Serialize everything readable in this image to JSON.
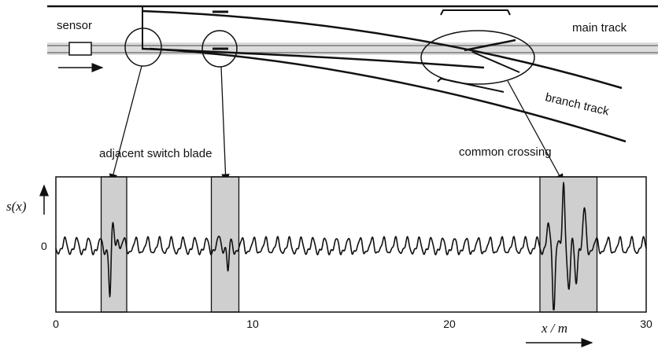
{
  "labels": {
    "sensor": "sensor",
    "main_track": "main track",
    "branch_track": "branch track",
    "adjacent_switch_blade": "adjacent switch blade",
    "common_crossing": "common crossing"
  },
  "chart_data": {
    "type": "line",
    "ylabel": "s(x)",
    "xlabel": "x / m",
    "xlim": [
      0,
      30
    ],
    "x_ticks": [
      0,
      10,
      20,
      30
    ],
    "y_ticks": [
      "0"
    ],
    "highlight_regions": [
      {
        "x_start": 2.3,
        "x_end": 3.6
      },
      {
        "x_start": 7.9,
        "x_end": 9.3
      },
      {
        "x_start": 24.6,
        "x_end": 27.5
      }
    ],
    "line_color": "#111111",
    "region_color": "#cfcfcf"
  },
  "colors": {
    "track_band": "#d9d9d9",
    "rail": "#111111"
  }
}
